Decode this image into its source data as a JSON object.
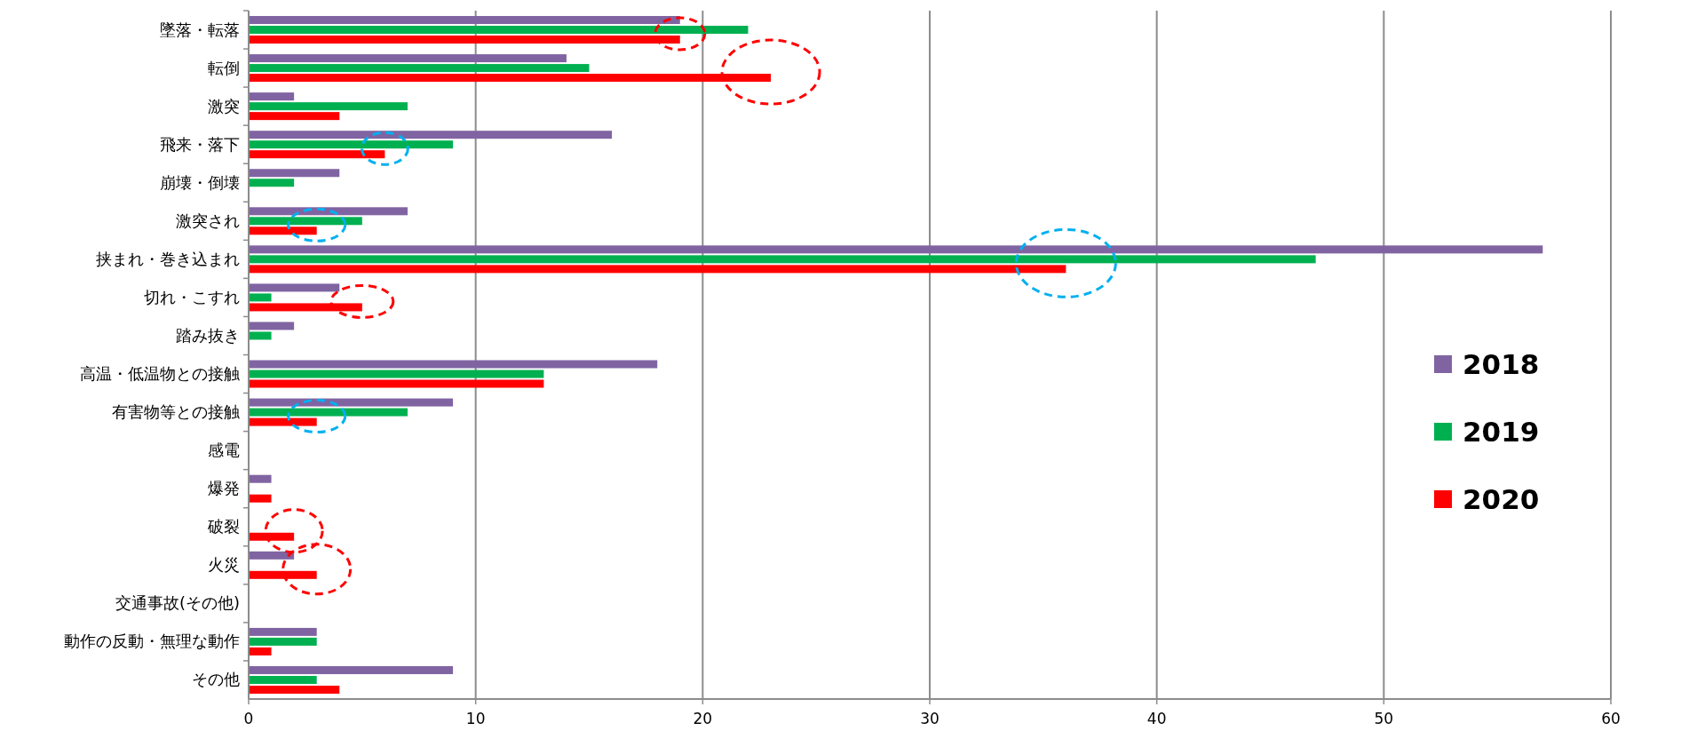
{
  "chart_data": {
    "type": "bar",
    "orientation": "horizontal",
    "categories": [
      "墜落・転落",
      "転倒",
      "激突",
      "飛来・落下",
      "崩壊・倒壊",
      "激突され",
      "挟まれ・巻き込まれ",
      "切れ・こすれ",
      "踏み抜き",
      "高温・低温物との接触",
      "有害物等との接触",
      "感電",
      "爆発",
      "破裂",
      "火災",
      "交通事故(その他)",
      "動作の反動・無理な動作",
      "その他"
    ],
    "series": [
      {
        "name": "2018",
        "color": "#8064a2",
        "values": [
          19,
          14,
          2,
          16,
          4,
          7,
          57,
          4,
          2,
          18,
          9,
          0,
          1,
          0,
          2,
          0,
          3,
          9
        ]
      },
      {
        "name": "2019",
        "color": "#00b050",
        "values": [
          22,
          15,
          7,
          9,
          2,
          5,
          47,
          1,
          1,
          13,
          7,
          0,
          0,
          0,
          0,
          0,
          3,
          3
        ]
      },
      {
        "name": "2020",
        "color": "#ff0000",
        "values": [
          19,
          23,
          4,
          6,
          0,
          3,
          36,
          5,
          0,
          13,
          3,
          0,
          1,
          2,
          3,
          0,
          1,
          4
        ]
      }
    ],
    "xlim": [
      0,
      60
    ],
    "xticks": [
      0,
      10,
      20,
      30,
      40,
      50,
      60
    ],
    "grid": "x",
    "legend": "right"
  }
}
